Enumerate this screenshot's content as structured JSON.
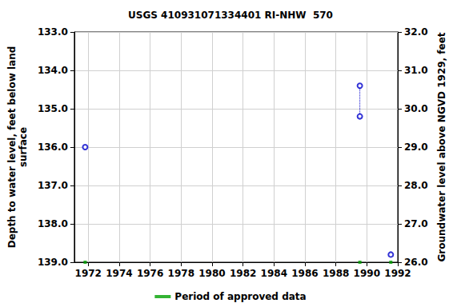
{
  "chart_data": {
    "type": "scatter",
    "title": "USGS 410931071334401 RI-NHW  570",
    "y_label": "Depth to water level, feet below land\nsurface",
    "y2_label": "Groundwater level above NGVD 1929, feet",
    "xlim": [
      1971.1,
      1992
    ],
    "xticks": [
      1972,
      1974,
      1976,
      1978,
      1980,
      1982,
      1984,
      1986,
      1988,
      1990,
      1992
    ],
    "ylim": [
      139,
      133
    ],
    "yticks": [
      {
        "value": 133,
        "label": "133.0"
      },
      {
        "value": 134,
        "label": "134.0"
      },
      {
        "value": 135,
        "label": "135.0"
      },
      {
        "value": 136,
        "label": "136.0"
      },
      {
        "value": 137,
        "label": "137.0"
      },
      {
        "value": 138,
        "label": "138.0"
      },
      {
        "value": 139,
        "label": "139.0"
      }
    ],
    "y2lim": [
      26,
      32
    ],
    "y2ticks": [
      {
        "value": 26,
        "label": "26.0"
      },
      {
        "value": 27,
        "label": "27.0"
      },
      {
        "value": 28,
        "label": "28.0"
      },
      {
        "value": 29,
        "label": "29.0"
      },
      {
        "value": 30,
        "label": "30.0"
      },
      {
        "value": 31,
        "label": "31.0"
      },
      {
        "value": 32,
        "label": "32.0"
      }
    ],
    "grid": true,
    "legend": "bottom",
    "series": [
      {
        "type": "scatter",
        "color": "#0000cc",
        "marker": "circle-open",
        "x": [
          1971.8,
          1989.55,
          1989.55,
          1991.55
        ],
        "values": [
          136.0,
          134.4,
          135.2,
          138.8
        ]
      },
      {
        "type": "line",
        "color": "#0000cc",
        "line_style": "dotted",
        "x": [
          1989.55,
          1989.55
        ],
        "values": [
          134.4,
          135.2
        ]
      },
      {
        "name": "Period of approved data",
        "type": "scatter",
        "color": "#00a000",
        "marker": "square",
        "x": [
          1971.8,
          1989.55,
          1991.55
        ],
        "values": [
          139,
          139,
          139
        ]
      }
    ]
  }
}
